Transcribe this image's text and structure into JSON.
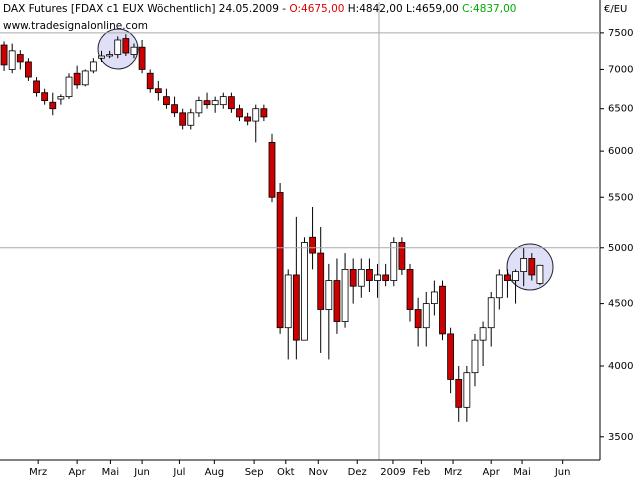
{
  "chart_data": {
    "type": "candlestick",
    "title": "DAX Futures [FDAX c1 EUX  Wöchentlich] 24.05.2009 -",
    "open_label": "O:4675,00",
    "high_label": "H:4842,00",
    "low_label": "L:4659,00",
    "close_label": "C:4837,00",
    "subtitle": "www.tradesignalonline.com",
    "y_unit": "€/EU",
    "up_color": "#ffffff",
    "down_color": "#cc0000",
    "label_down_color": "#dd0000",
    "label_up_color": "#00aa00",
    "log_scale": true,
    "ylim": [
      3350,
      7950
    ],
    "yticks": [
      3500,
      4000,
      4500,
      5000,
      5500,
      6000,
      6500,
      7000,
      7500
    ],
    "reference_lines": [
      7500,
      5000
    ],
    "xlim": [
      -0.5,
      73.4
    ],
    "xticks": [
      {
        "value": 4.2,
        "label": "Mrz"
      },
      {
        "value": 9.0,
        "label": "Apr"
      },
      {
        "value": 13.1,
        "label": "Mai"
      },
      {
        "value": 17.0,
        "label": "Jun"
      },
      {
        "value": 21.6,
        "label": "Jul"
      },
      {
        "value": 25.9,
        "label": "Aug"
      },
      {
        "value": 30.8,
        "label": "Sep"
      },
      {
        "value": 34.7,
        "label": "Okt"
      },
      {
        "value": 38.7,
        "label": "Nov"
      },
      {
        "value": 43.5,
        "label": "Dez"
      },
      {
        "value": 47.9,
        "label": "2009"
      },
      {
        "value": 51.4,
        "label": "Feb"
      },
      {
        "value": 55.3,
        "label": "Mrz"
      },
      {
        "value": 60.0,
        "label": "Apr"
      },
      {
        "value": 63.8,
        "label": "Mai"
      },
      {
        "value": 68.8,
        "label": "Jun"
      }
    ],
    "open": [
      7330,
      7000,
      7200,
      7100,
      6850,
      6700,
      6580,
      6620,
      6650,
      6950,
      6800,
      6980,
      7150,
      7180,
      7200,
      7420,
      7200,
      7300,
      6950,
      6750,
      6650,
      6550,
      6450,
      6300,
      6450,
      6600,
      6550,
      6550,
      6650,
      6500,
      6400,
      6350,
      6500,
      6100,
      5550,
      4300,
      4750,
      4200,
      5100,
      4950,
      4450,
      4700,
      4350,
      4800,
      4650,
      4800,
      4700,
      4750,
      4700,
      5050,
      4800,
      4450,
      4300,
      4500,
      4650,
      4250,
      3900,
      3700,
      3950,
      4200,
      4300,
      4550,
      4750,
      4700,
      4780,
      4900,
      4675
    ],
    "high": [
      7380,
      7350,
      7260,
      7150,
      6900,
      6750,
      6700,
      6680,
      6950,
      7050,
      7000,
      7150,
      7250,
      7250,
      7450,
      7480,
      7350,
      7400,
      7000,
      6850,
      6750,
      6650,
      6500,
      6500,
      6650,
      6700,
      6650,
      6700,
      6700,
      6550,
      6450,
      6550,
      6550,
      6200,
      5650,
      4800,
      5300,
      5100,
      5400,
      5200,
      4850,
      4900,
      4950,
      4900,
      4900,
      4900,
      4850,
      4850,
      5100,
      5100,
      4850,
      4550,
      4600,
      4700,
      4700,
      4300,
      4000,
      4000,
      4250,
      4350,
      4600,
      4800,
      4800,
      4800,
      5000,
      4950,
      4842
    ],
    "low": [
      6980,
      6950,
      7000,
      6850,
      6650,
      6550,
      6420,
      6550,
      6620,
      6750,
      6780,
      6950,
      7100,
      7150,
      7150,
      7180,
      7150,
      6950,
      6700,
      6600,
      6500,
      6400,
      6250,
      6250,
      6400,
      6500,
      6450,
      6500,
      6450,
      6350,
      6300,
      6100,
      6350,
      5450,
      4250,
      4050,
      4050,
      4200,
      4800,
      4100,
      4050,
      4250,
      4300,
      4500,
      4550,
      4600,
      4550,
      4650,
      4650,
      4750,
      4350,
      4150,
      4150,
      4400,
      4200,
      3800,
      3600,
      3600,
      3850,
      4000,
      4150,
      4450,
      4550,
      4500,
      4650,
      4700,
      4659
    ],
    "close": [
      7060,
      7250,
      7100,
      6900,
      6700,
      6600,
      6500,
      6650,
      6900,
      6800,
      6980,
      7100,
      7180,
      7200,
      7400,
      7220,
      7300,
      7000,
      6750,
      6700,
      6550,
      6450,
      6300,
      6450,
      6600,
      6550,
      6600,
      6650,
      6500,
      6400,
      6350,
      6500,
      6400,
      5500,
      4300,
      4750,
      4200,
      5050,
      4950,
      4450,
      4700,
      4350,
      4800,
      4650,
      4800,
      4700,
      4750,
      4700,
      5050,
      4800,
      4450,
      4300,
      4500,
      4600,
      4250,
      3900,
      3700,
      3950,
      4200,
      4300,
      4550,
      4750,
      4700,
      4780,
      4900,
      4750,
      4837
    ]
  }
}
